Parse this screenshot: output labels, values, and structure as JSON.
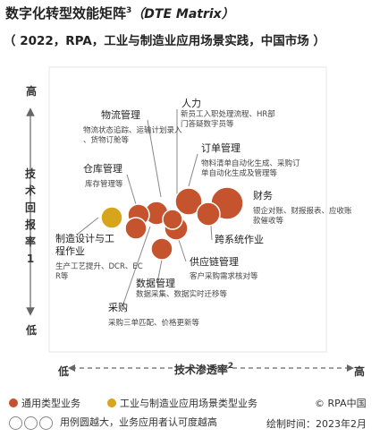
{
  "header": {
    "title": "数字化转型效能矩阵",
    "title_sup": "3",
    "title_paren": "（DTE Matrix）",
    "subtitle": "（ 2022，RPA，工业与制造业应用场景实践，中国市场 ）"
  },
  "chart_data": {
    "type": "scatter",
    "title": "数字化转型效能矩阵（DTE Matrix）",
    "ylabel": "技术回报率",
    "ylabel_sup": "1",
    "xlabel": "技术渗透率",
    "xlabel_sup": "2",
    "y_high": "高",
    "y_low": "低",
    "x_low": "低",
    "x_high": "高",
    "series": [
      {
        "name": "通用类型业务",
        "color": "#c4532e"
      },
      {
        "name": "工业与制造业应用场景类型业务",
        "color": "#d6a51c"
      }
    ],
    "points": [
      {
        "category": "制造设计与工程作业",
        "desc": "生产工艺提升、DCR、ECR等",
        "series": 1
      },
      {
        "category": "物流管理",
        "desc": "物流状态追踪、运输计划录入、货物订舱等",
        "series": 0
      },
      {
        "category": "仓库管理",
        "desc": "库存管理等",
        "series": 0
      },
      {
        "category": "人力",
        "desc": "新员工入职处理流程、HR部门答疑数字员等",
        "series": 0
      },
      {
        "category": "订单管理",
        "desc": "物料清单自动化生成、采购订单自动化生成及管理等",
        "series": 0
      },
      {
        "category": "财务",
        "desc": "银企对账、财报报表、应收账款催收等",
        "series": 0
      },
      {
        "category": "跨系统作业",
        "desc": "",
        "series": 0
      },
      {
        "category": "供应链管理",
        "desc": "客户采购需求核对等",
        "series": 0
      },
      {
        "category": "数据管理",
        "desc": "数据采集、数据实时迁移等",
        "series": 0
      },
      {
        "category": "采购",
        "desc": "采购三单匹配、价格更新等",
        "series": 0
      },
      {
        "category": "",
        "desc": "",
        "series": 0
      }
    ]
  },
  "footer": {
    "legend_general": "通用类型业务",
    "legend_industry": "工业与制造业应用场景类型业务",
    "copyright": "© RPA中国",
    "size_note": "用例圆越大，业务应用者认可度越高",
    "date": "绘制时间：2023年2月"
  },
  "colors": {
    "general": "#c4532e",
    "industry": "#d6a51c",
    "bubble_stroke": "#ffffff",
    "leader": "#888888"
  }
}
